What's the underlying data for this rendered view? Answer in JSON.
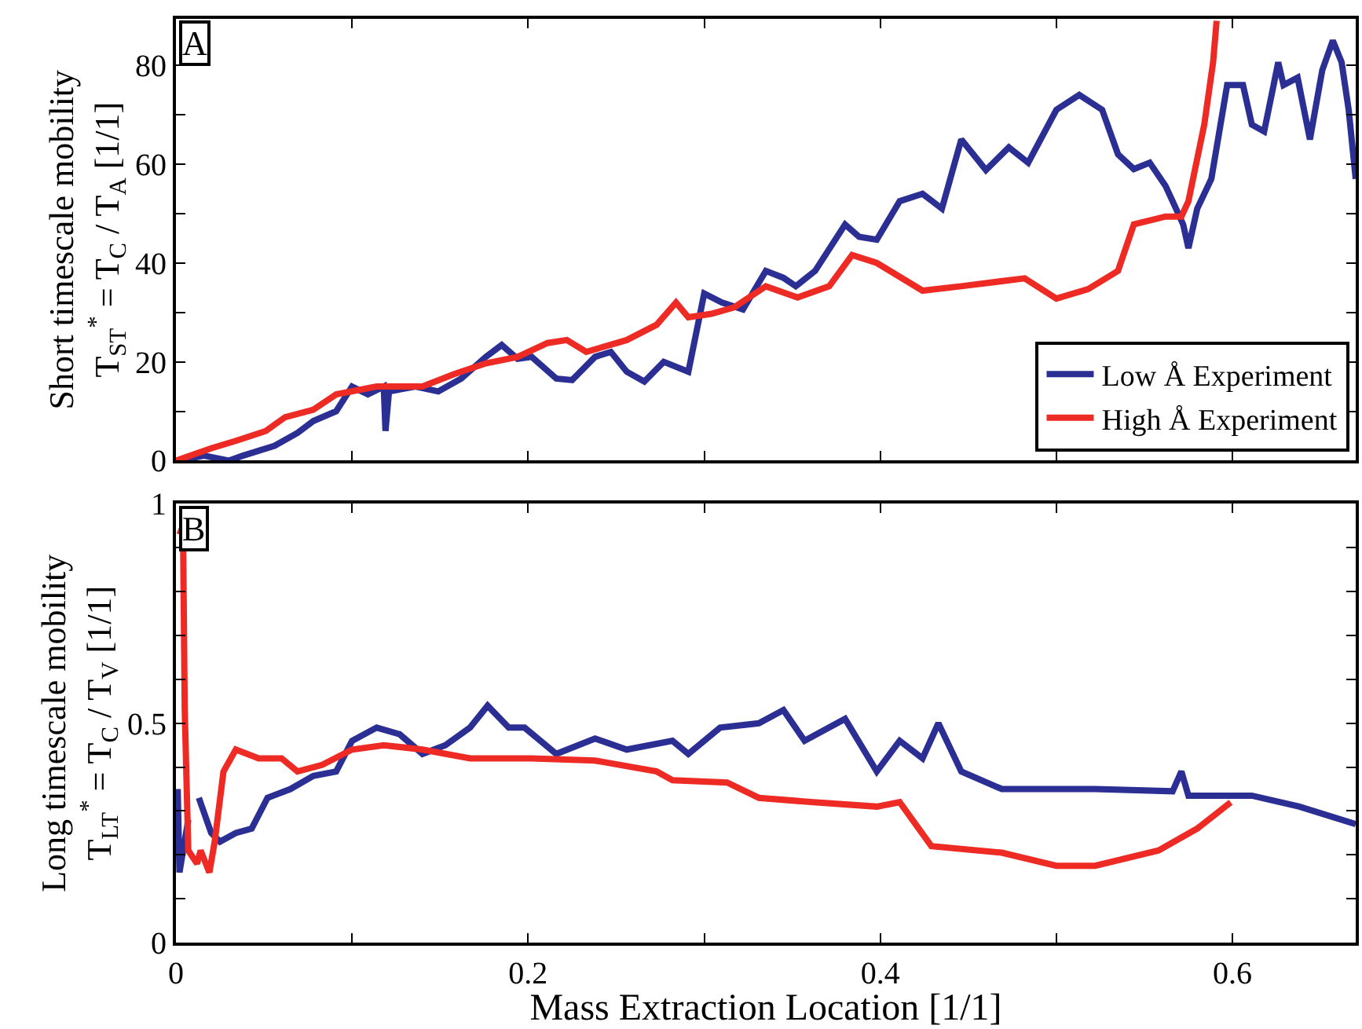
{
  "chart_data": [
    {
      "type": "line",
      "ylabel": "Short timescale mobility\nT$_{ST}$$^{*}$ = T$_{C}$ / T$_{A}$ [1/1]",
      "annotations": [
        "A"
      ],
      "xlim": [
        0,
        0.67
      ],
      "xticks": [
        0,
        {
          "value": 0.1,
          "label": null
        },
        {
          "value": 0.2,
          "label": null
        },
        {
          "value": 0.3,
          "label": null
        },
        {
          "value": 0.4,
          "label": null
        },
        {
          "value": 0.5,
          "label": null
        },
        {
          "value": 0.6,
          "label": null
        }
      ],
      "ylim": [
        0,
        89.4
      ],
      "yticks": [
        0,
        {
          "value": 10,
          "label": null
        },
        20,
        {
          "value": 30,
          "label": null
        },
        40,
        {
          "value": 50,
          "label": null
        },
        60,
        {
          "value": 70,
          "label": null
        },
        80
      ],
      "tick_labels": "y",
      "legend": "bottom right",
      "line_style": "solid",
      "marker": "none",
      "series": [
        {
          "name": "Low Å Experiment",
          "color": "#2b2f93",
          "x": [
            0,
            0.016,
            0.03,
            0.038,
            0.056,
            0.069,
            0.078,
            0.091,
            0.1,
            0.109,
            0.118,
            0.119,
            0.121,
            0.136,
            0.149,
            0.162,
            0.176,
            0.185,
            0.194,
            0.202,
            0.216,
            0.225,
            0.238,
            0.247,
            0.256,
            0.266,
            0.277,
            0.291,
            0.3,
            0.31,
            0.322,
            0.335,
            0.345,
            0.352,
            0.363,
            0.38,
            0.388,
            0.398,
            0.411,
            0.424,
            0.435,
            0.446,
            0.46,
            0.473,
            0.484,
            0.5,
            0.513,
            0.526,
            0.535,
            0.544,
            0.553,
            0.562,
            0.566,
            0.572,
            0.575,
            0.58,
            0.588,
            0.597,
            0.606,
            0.611,
            0.618,
            0.626,
            0.629,
            0.637,
            0.644,
            0.651,
            0.657,
            0.662,
            0.666,
            0.67
          ],
          "values": [
            0,
            1,
            0,
            1,
            3,
            5.6,
            8,
            10,
            15,
            13.4,
            15,
            6,
            14,
            15,
            14,
            16.6,
            21,
            23.4,
            20.6,
            21,
            16.6,
            16.3,
            21,
            22,
            18,
            16,
            20,
            18,
            33.8,
            32,
            30.6,
            38.4,
            37,
            35.3,
            38.4,
            47.8,
            45.3,
            44.7,
            52.5,
            54,
            51,
            65,
            58.8,
            63.4,
            60.3,
            71,
            74,
            71,
            62,
            59,
            60.3,
            55.6,
            52.5,
            47.8,
            43,
            51,
            57,
            76,
            76,
            68,
            66.6,
            80.6,
            76,
            77.5,
            65,
            79,
            85,
            80.6,
            71,
            57
          ]
        },
        {
          "name": "High Å Experiment",
          "color": "#ee2a24",
          "x": [
            0,
            0.02,
            0.034,
            0.051,
            0.062,
            0.078,
            0.091,
            0.114,
            0.14,
            0.158,
            0.176,
            0.194,
            0.211,
            0.222,
            0.233,
            0.256,
            0.273,
            0.284,
            0.291,
            0.304,
            0.317,
            0.335,
            0.353,
            0.371,
            0.384,
            0.398,
            0.424,
            0.446,
            0.482,
            0.5,
            0.518,
            0.535,
            0.544,
            0.562,
            0.571,
            0.575,
            0.584,
            0.589,
            0.591
          ],
          "values": [
            0,
            2.5,
            4,
            6,
            8.8,
            10.3,
            13.4,
            15,
            15,
            17.5,
            19.7,
            21,
            23.8,
            24.4,
            22,
            24.4,
            27.5,
            32,
            29,
            29.7,
            31,
            35.3,
            33,
            35.3,
            41.6,
            40,
            34.4,
            35.3,
            36.9,
            32.8,
            34.7,
            38.4,
            47.8,
            49.4,
            49.4,
            52.5,
            68,
            80.6,
            89
          ]
        }
      ]
    },
    {
      "type": "line",
      "xlabel": "Mass Extraction Location [1/1]",
      "ylabel": "Long timescale mobility\nT$_{LT}$$^{*}$ = T$_{C}$ / T$_{V}$ [1/1]",
      "annotations": [
        "B"
      ],
      "xlim": [
        0,
        0.67
      ],
      "xticks": [
        0,
        {
          "value": 0.1,
          "label": null
        },
        0.2,
        {
          "value": 0.3,
          "label": null
        },
        0.4,
        {
          "value": 0.5,
          "label": null
        },
        0.6
      ],
      "ylim": [
        0,
        1
      ],
      "yticks": [
        0,
        {
          "value": 0.1,
          "label": null
        },
        {
          "value": 0.2,
          "label": null
        },
        {
          "value": 0.3,
          "label": null
        },
        {
          "value": 0.4,
          "label": null
        },
        0.5,
        {
          "value": 0.6,
          "label": null
        },
        {
          "value": 0.7,
          "label": null
        },
        {
          "value": 0.8,
          "label": null
        },
        {
          "value": 0.9,
          "label": null
        },
        1
      ],
      "line_style": "solid",
      "marker": "none",
      "series": [
        {
          "color": "#2b2f93",
          "x": [
            0.001,
            0.002,
            0.007,
            0.012,
            0.013,
            0.02,
            0.025,
            0.034,
            0.043,
            0.052,
            0.065,
            0.078,
            0.091,
            0.1,
            0.114,
            0.127,
            0.14,
            0.153,
            0.167,
            0.177,
            0.189,
            0.198,
            0.216,
            0.238,
            0.256,
            0.282,
            0.291,
            0.309,
            0.331,
            0.345,
            0.357,
            0.38,
            0.398,
            0.411,
            0.424,
            0.433,
            0.446,
            0.469,
            0.491,
            0.504,
            0.522,
            0.566,
            0.571,
            0.575,
            0.611,
            0.638,
            0.67
          ],
          "values": [
            0.35,
            0.16,
            0.28,
            null,
            0.33,
            0.25,
            0.23,
            0.25,
            0.26,
            0.33,
            0.35,
            0.38,
            0.39,
            0.46,
            0.49,
            0.475,
            0.43,
            0.45,
            0.49,
            0.54,
            0.49,
            0.49,
            0.43,
            0.465,
            0.44,
            0.46,
            0.43,
            0.49,
            0.5,
            0.53,
            0.46,
            0.51,
            0.39,
            0.46,
            0.42,
            0.5,
            0.39,
            0.35,
            0.35,
            0.35,
            0.35,
            0.345,
            0.39,
            0.335,
            0.335,
            0.31,
            0.27
          ]
        },
        {
          "color": "#ee2a24",
          "x": [
            0.002,
            0.004,
            0.005,
            0.007,
            0.012,
            0.014,
            0.019,
            0.022,
            0.027,
            0.034,
            0.047,
            0.06,
            0.069,
            0.083,
            0.1,
            0.118,
            0.14,
            0.167,
            0.202,
            0.238,
            0.273,
            0.282,
            0.313,
            0.331,
            0.362,
            0.398,
            0.411,
            0.429,
            0.469,
            0.5,
            0.522,
            0.558,
            0.58,
            0.599
          ],
          "values": [
            0.93,
            0.95,
            0.53,
            0.21,
            0.18,
            0.21,
            0.16,
            0.23,
            0.39,
            0.44,
            0.42,
            0.42,
            0.39,
            0.405,
            0.44,
            0.45,
            0.44,
            0.42,
            0.42,
            0.415,
            0.39,
            0.37,
            0.365,
            0.33,
            0.32,
            0.31,
            0.32,
            0.22,
            0.205,
            0.175,
            0.175,
            0.21,
            0.26,
            0.32
          ]
        }
      ]
    }
  ]
}
